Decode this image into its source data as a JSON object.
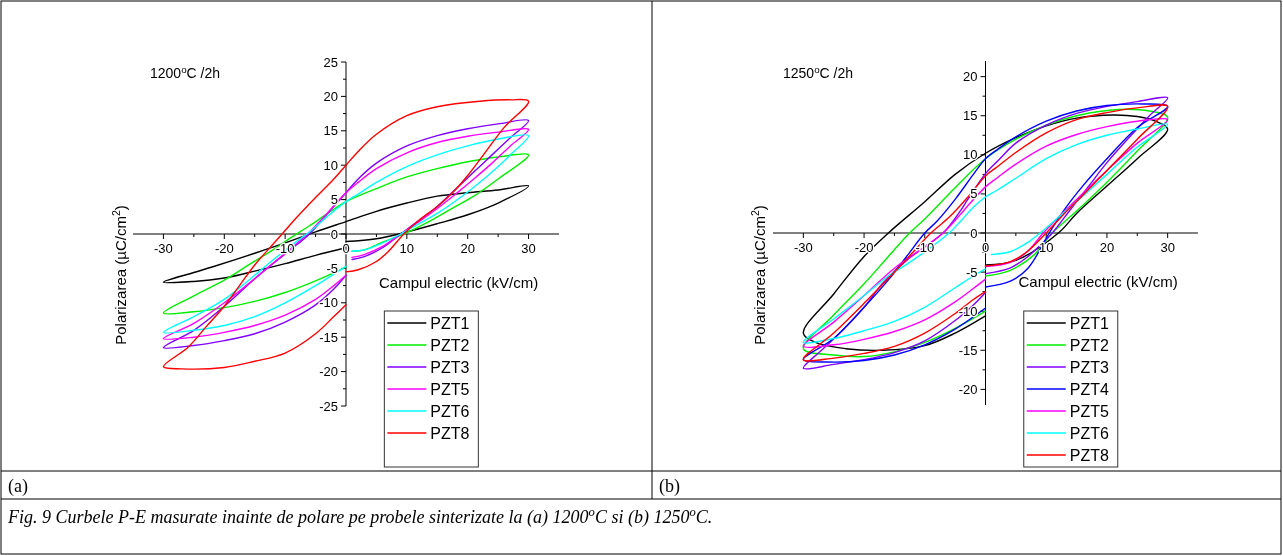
{
  "chart_data": [
    {
      "type": "line",
      "title": "1200$^{o}$C /2h",
      "xlabel": "Campul electric (kV/cm)",
      "ylabel": "Polarizarea (µC/cm$^{2}$)",
      "xlim": [
        -35,
        35
      ],
      "ylim": [
        -25,
        25
      ],
      "xticks": [
        -30,
        {
          "value": -25,
          "label": null
        },
        -20,
        {
          "value": -15,
          "label": null
        },
        -10,
        {
          "value": -5,
          "label": null
        },
        0,
        {
          "value": 5,
          "label": null
        },
        10,
        {
          "value": 15,
          "label": null
        },
        20,
        {
          "value": 25,
          "label": null
        },
        30
      ],
      "yticks": [
        -25,
        {
          "value": -22.5,
          "label": null
        },
        -20,
        {
          "value": -17.5,
          "label": null
        },
        -15,
        {
          "value": -12.5,
          "label": null
        },
        -10,
        {
          "value": -7.5,
          "label": null
        },
        -5,
        {
          "value": -2.5,
          "label": null
        },
        0,
        {
          "value": 2.5,
          "label": null
        },
        5,
        {
          "value": 7.5,
          "label": null
        },
        10,
        {
          "value": 12.5,
          "label": null
        },
        15,
        {
          "value": 17.5,
          "label": null
        },
        20,
        {
          "value": 22.5,
          "label": null
        },
        25
      ],
      "legend": "bottom right",
      "annotations": [
        "(a)",
        "Fig. 9 Curbele P-E masurate inainte de polare pe probele sinterizate la (a) 1200$^{o}$C si (b) 1250$^{o}$C."
      ],
      "series": [
        {
          "name": "PZT1",
          "color": "#000000",
          "x": [
            0,
            5,
            10,
            15,
            20,
            25,
            30,
            25,
            20,
            15,
            10,
            5,
            0,
            -5,
            -10,
            -15,
            -22,
            -25,
            -30,
            -25,
            -20,
            -15,
            -10,
            -5,
            0
          ],
          "values": [
            -1.1,
            -0.7,
            0.3,
            1.5,
            2.8,
            4.5,
            7,
            6.4,
            6,
            5.5,
            4.5,
            3.3,
            1.8,
            0.3,
            -1.3,
            -2.8,
            -4.8,
            -5.6,
            -7,
            -6.9,
            -6.4,
            -5.4,
            -4.3,
            -3.1,
            -2
          ]
        },
        {
          "name": "PZT2",
          "color": "#00ee00",
          "x": [
            1,
            3,
            6,
            9.5,
            13,
            17,
            21,
            25,
            30,
            25,
            20,
            15,
            10,
            5,
            0,
            -3,
            -6,
            -9,
            -12,
            -16,
            -20,
            -25,
            -30,
            -25,
            -20,
            -15,
            -10,
            -5,
            0
          ],
          "values": [
            -2.5,
            -2.3,
            -1.2,
            0,
            1.5,
            3.5,
            5.5,
            8,
            11.5,
            11.2,
            10.5,
            9.5,
            8.3,
            6.6,
            4.7,
            3,
            1.2,
            -0.5,
            -2.3,
            -4.5,
            -6.7,
            -9,
            -11.5,
            -11.3,
            -10.7,
            -9.8,
            -8.5,
            -6.8,
            -4.8
          ]
        },
        {
          "name": "PZT3",
          "color": "#8000ff",
          "x": [
            1,
            3,
            6,
            9,
            12,
            15,
            18,
            21,
            24,
            27,
            30,
            25,
            20,
            15,
            10,
            5,
            2,
            0,
            -3,
            -6,
            -8,
            -13,
            -15,
            -20,
            -25,
            -30,
            -25,
            -20,
            -15,
            -10,
            -5,
            -2,
            0
          ],
          "values": [
            -3.7,
            -3.3,
            -2,
            0,
            2,
            4,
            6.5,
            9,
            11.5,
            14,
            16.5,
            16,
            15.3,
            14.3,
            12.8,
            10.3,
            8,
            6,
            3,
            0,
            -1.5,
            -5,
            -6.5,
            -10.5,
            -14,
            -16.5,
            -16.2,
            -15.5,
            -14.5,
            -12.8,
            -10.3,
            -8,
            -6
          ]
        },
        {
          "name": "PZT5",
          "color": "#ff00ff",
          "x": [
            1,
            3,
            6,
            9,
            12,
            15,
            18,
            21,
            24,
            27,
            30,
            25,
            20,
            15,
            10,
            5,
            2,
            0,
            -3,
            -6,
            -8,
            -13,
            -15,
            -20,
            -25,
            -30,
            -25,
            -20,
            -15,
            -10,
            -5,
            -2,
            0
          ],
          "values": [
            -3.4,
            -3,
            -1.8,
            0,
            1.8,
            3.7,
            5.8,
            8,
            10.3,
            12.8,
            15.2,
            14.8,
            14.2,
            13.3,
            11.8,
            9.5,
            7.5,
            6,
            3.1,
            0.3,
            -1.3,
            -5,
            -6.5,
            -10,
            -13,
            -15.2,
            -15,
            -14.3,
            -13.3,
            -11.8,
            -9.5,
            -7.5,
            -6
          ]
        },
        {
          "name": "PZT6",
          "color": "#00ffff",
          "x": [
            1,
            3,
            6,
            9,
            12,
            15,
            18,
            21,
            24,
            27,
            30,
            25,
            20,
            15,
            10,
            5,
            2,
            0,
            -3,
            -6,
            -8,
            -13,
            -15,
            -20,
            -25,
            -30,
            -25,
            -20,
            -15,
            -10,
            -5,
            0
          ],
          "values": [
            -2.5,
            -2.3,
            -1.3,
            0,
            1.5,
            3,
            4.8,
            6.8,
            9,
            11.5,
            14.3,
            13.8,
            12.8,
            11.5,
            9.8,
            7.5,
            5.8,
            4.7,
            2.6,
            0.3,
            -1,
            -4.5,
            -6,
            -9.5,
            -12,
            -14.3,
            -14,
            -13.3,
            -12,
            -10,
            -7.5,
            -4.7
          ]
        },
        {
          "name": "PZT8",
          "color": "#ff0000",
          "x": [
            0,
            2,
            5,
            7,
            9.5,
            12,
            15,
            17.5,
            20,
            23,
            26,
            30,
            27,
            22,
            15,
            10,
            5,
            2,
            0,
            -2,
            -5,
            -8,
            -10,
            -12,
            -15,
            -17.5,
            -20,
            -23,
            -26,
            -30,
            -27,
            -20,
            -15,
            -10,
            -5,
            -2,
            0
          ],
          "values": [
            -5.5,
            -5.2,
            -4,
            -2.5,
            0,
            2,
            4,
            6,
            8.5,
            12,
            15.5,
            19.3,
            19.5,
            19.3,
            18.5,
            17.2,
            14.5,
            12,
            10,
            8,
            5.3,
            2.5,
            0.5,
            -1.5,
            -4.5,
            -7.5,
            -10.5,
            -13.5,
            -16.5,
            -19.3,
            -19.6,
            -19.4,
            -18.5,
            -17.3,
            -14.5,
            -12,
            -10.3
          ]
        }
      ]
    },
    {
      "type": "line",
      "title": "1250$^{o}$C /2h",
      "xlabel": "Campul electric (kV/cm)",
      "ylabel": "Polarizarea (µC/cm$^{2}$)",
      "xlim": [
        -35,
        35
      ],
      "ylim": [
        -22,
        22
      ],
      "xticks": [
        -30,
        {
          "value": -25,
          "label": null
        },
        -20,
        {
          "value": -15,
          "label": null
        },
        -10,
        {
          "value": -5,
          "label": null
        },
        0,
        {
          "value": 5,
          "label": null
        },
        10,
        {
          "value": 15,
          "label": null
        },
        20,
        {
          "value": 25,
          "label": null
        },
        30
      ],
      "yticks": [
        -20,
        {
          "value": -17.5,
          "label": null
        },
        -15,
        {
          "value": -12.5,
          "label": null
        },
        -10,
        {
          "value": -7.5,
          "label": null
        },
        -5,
        {
          "value": -2.5,
          "label": null
        },
        0,
        {
          "value": 2.5,
          "label": null
        },
        5,
        {
          "value": 7.5,
          "label": null
        },
        10,
        {
          "value": 12.5,
          "label": null
        },
        15,
        {
          "value": 17.5,
          "label": null
        },
        20
      ],
      "legend": "bottom right",
      "annotations": [
        "(b)"
      ],
      "series": [
        {
          "name": "PZT1",
          "color": "#000000",
          "x": [
            0,
            5,
            12,
            15,
            20,
            25,
            30,
            28,
            25,
            21,
            15,
            10,
            5,
            0,
            -5,
            -10,
            -16,
            -20,
            -25,
            -30,
            -28,
            -23,
            -17,
            -10,
            -5,
            0
          ],
          "values": [
            -4.1,
            -3.5,
            0,
            2.5,
            6,
            9.5,
            13.3,
            14.3,
            14.9,
            15.1,
            14.7,
            13.7,
            12.2,
            10.2,
            7.5,
            4,
            0,
            -3,
            -7.8,
            -12.8,
            -14,
            -14.8,
            -15,
            -14.4,
            -12.8,
            -10.6
          ]
        },
        {
          "name": "PZT2",
          "color": "#00ee00",
          "x": [
            0,
            4,
            8,
            11,
            15,
            20,
            25,
            30,
            27,
            22,
            15,
            10,
            5,
            0,
            -5,
            -10,
            -12.5,
            -16,
            -20,
            -25,
            -30,
            -25,
            -20,
            -15,
            -10,
            -5,
            0
          ],
          "values": [
            -5.5,
            -4.8,
            -2.8,
            0,
            2.8,
            6.5,
            10.5,
            14.8,
            15.6,
            15.8,
            15,
            13.8,
            12,
            9.5,
            5.8,
            1.8,
            0,
            -3,
            -6.5,
            -10.5,
            -14.8,
            -15.6,
            -15.8,
            -15.2,
            -14,
            -12.2,
            -10
          ]
        },
        {
          "name": "PZT3",
          "color": "#8000ff",
          "x": [
            0,
            4,
            7,
            10,
            11,
            14,
            17,
            20,
            24,
            27,
            30,
            25,
            20,
            15,
            10,
            5,
            2,
            0,
            -3,
            -4,
            -7,
            -13,
            -17,
            -20,
            -24,
            -27,
            -30,
            -25,
            -20,
            -15,
            -10,
            -5,
            -2,
            0
          ],
          "values": [
            -5.2,
            -4.5,
            -3,
            -0.8,
            0,
            3,
            6,
            9,
            12.5,
            15,
            17.3,
            16.8,
            16.2,
            15.3,
            13.8,
            11.5,
            9.2,
            7.6,
            4.2,
            3,
            0,
            -3.5,
            -6.5,
            -9.5,
            -12.8,
            -15,
            -17.3,
            -16.8,
            -16.2,
            -15.3,
            -13.8,
            -11.2,
            -9.2,
            -7.6
          ]
        },
        {
          "name": "PZT4",
          "color": "#0000ff",
          "x": [
            0,
            4,
            7,
            10.5,
            13,
            16,
            20,
            25,
            30,
            26,
            20,
            15,
            10,
            5,
            2,
            0,
            -2,
            -5,
            -8,
            -10,
            -13,
            -16,
            -20,
            -25,
            -30,
            -26,
            -20,
            -15,
            -10,
            -5,
            0
          ],
          "values": [
            -6.9,
            -6.2,
            -4.5,
            0,
            3,
            6,
            9.5,
            13.5,
            16.2,
            16.5,
            16.3,
            15.6,
            14.3,
            12.3,
            10.7,
            9.5,
            7.5,
            4.3,
            1.5,
            0,
            -3,
            -6,
            -9.5,
            -13.5,
            -16.2,
            -16.5,
            -16.3,
            -15.6,
            -14.3,
            -12.3,
            -9.6
          ]
        },
        {
          "name": "PZT5",
          "color": "#ff00ff",
          "x": [
            0,
            4,
            7,
            9.5,
            12,
            15,
            20,
            25,
            30,
            25,
            20,
            15,
            10,
            5,
            2,
            0,
            -3,
            -4,
            -7,
            -15,
            -20,
            -25,
            -30,
            -25,
            -20,
            -15,
            -10,
            -5,
            -2,
            0
          ],
          "values": [
            -4.3,
            -3.8,
            -2.3,
            0,
            2,
            4.3,
            8,
            11.5,
            14.5,
            14.3,
            13.6,
            12.6,
            11.1,
            8.8,
            7.1,
            5.9,
            3.4,
            2.5,
            0,
            -4.5,
            -8,
            -11.4,
            -14.5,
            -14.3,
            -13.6,
            -12.6,
            -11.1,
            -8.8,
            -7.1,
            -5.9
          ]
        },
        {
          "name": "PZT6",
          "color": "#00ffff",
          "x": [
            1,
            4,
            7,
            9,
            12,
            15,
            20,
            25,
            30,
            25,
            20,
            15,
            10,
            5,
            2,
            0,
            -2,
            -4,
            -6,
            -12,
            -16,
            -20,
            -25,
            -30,
            -25,
            -20,
            -15,
            -10,
            -5,
            -2,
            0
          ],
          "values": [
            -2.75,
            -2.4,
            -1.2,
            0,
            2,
            4,
            7.5,
            11,
            13.9,
            13.3,
            12.5,
            11.3,
            9.5,
            7,
            5.5,
            4.6,
            3.3,
            1.6,
            0,
            -3.5,
            -5.5,
            -8,
            -11,
            -14,
            -13.5,
            -12.5,
            -11.3,
            -9.5,
            -7,
            -5.5,
            -4.6
          ]
        },
        {
          "name": "PZT8",
          "color": "#ff0000",
          "x": [
            0,
            4,
            7,
            10,
            13,
            16,
            20,
            25,
            30,
            25,
            20,
            15,
            10,
            5,
            2,
            0,
            -3,
            -6,
            -9,
            -12,
            -15,
            -20,
            -25,
            -30,
            -25,
            -20,
            -15,
            -10,
            -5,
            -2,
            0
          ],
          "values": [
            -4.2,
            -3.7,
            -2.3,
            0,
            2.5,
            4.8,
            8,
            12,
            16.2,
            16,
            15.4,
            14.5,
            12.8,
            10.3,
            8.5,
            7.3,
            4.5,
            2,
            0,
            -2.5,
            -5,
            -9,
            -12.8,
            -16.2,
            -16,
            -15.4,
            -14.5,
            -12.8,
            -10.3,
            -8.5,
            -7.5
          ]
        }
      ]
    }
  ]
}
